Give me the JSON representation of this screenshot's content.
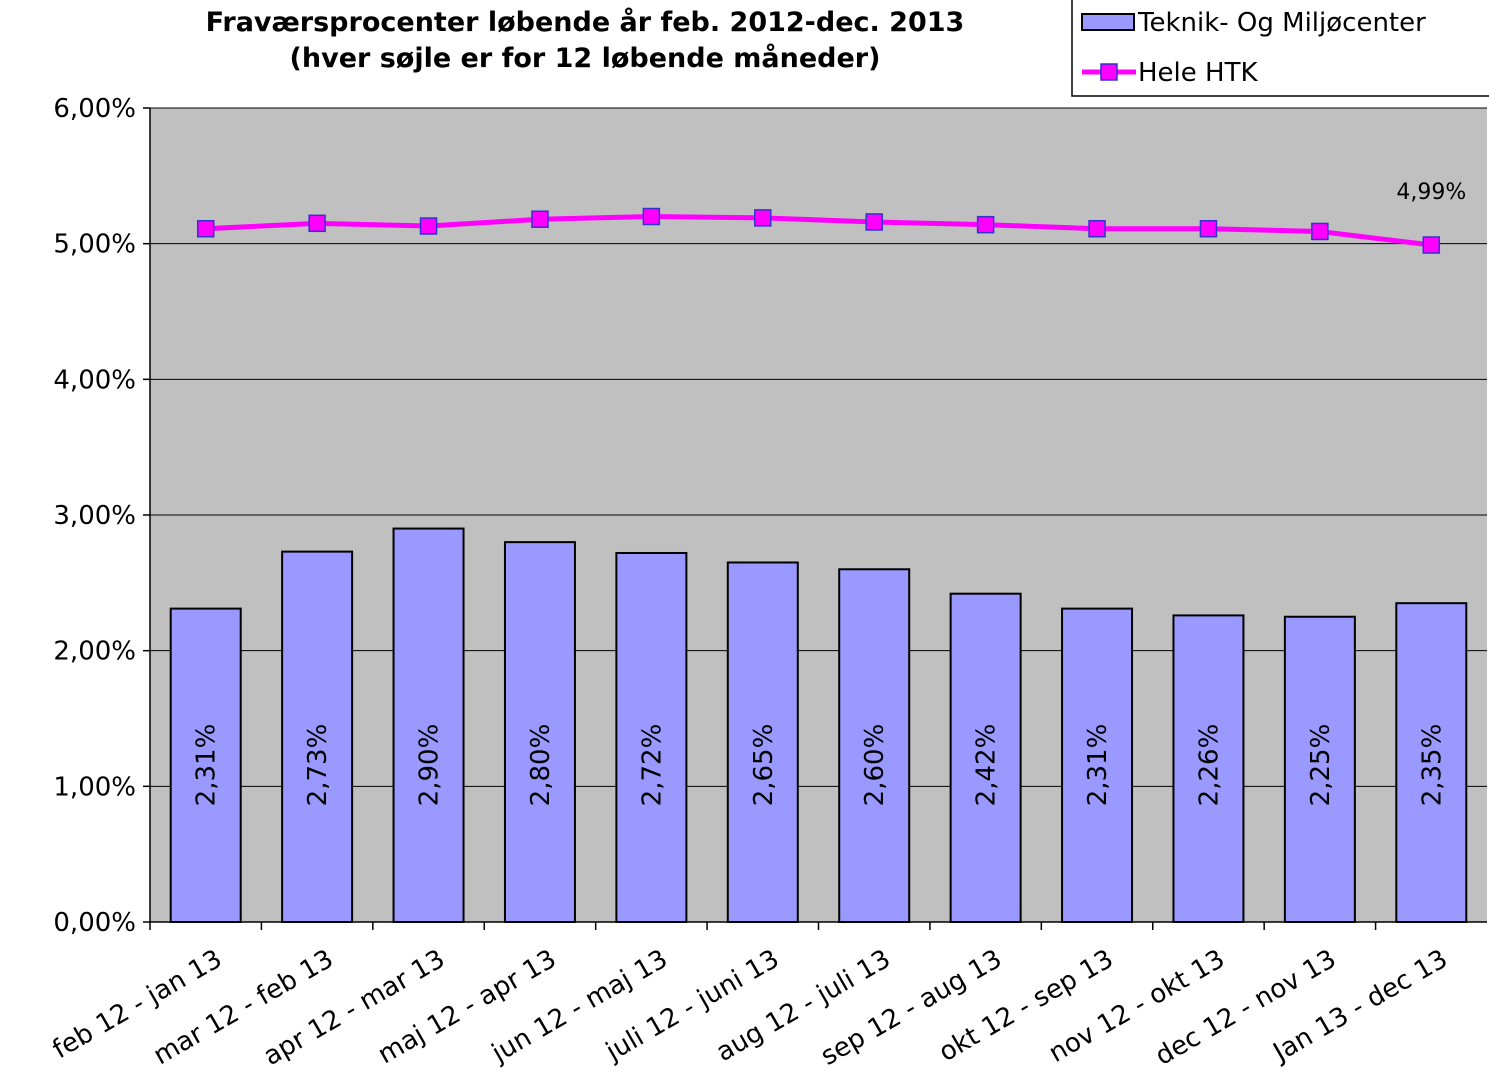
{
  "chart_data": {
    "type": "bar",
    "title": "Fraværsprocenter løbende år feb. 2012-dec. 2013",
    "subtitle": "(hver søjle er for 12 løbende måneder)",
    "categories": [
      "feb 12 - jan 13",
      "mar 12 - feb 13",
      "apr 12 - mar 13",
      "maj 12 - apr 13",
      "jun 12 - maj 13",
      "juli 12 - juni 13",
      "aug 12 - juli 13",
      "sep 12 - aug 13",
      "okt 12 - sep 13",
      "nov 12 - okt 13",
      "dec 12 - nov 13",
      "Jan 13 - dec 13"
    ],
    "series": [
      {
        "name": "Teknik- Og Miljøcenter",
        "type": "bar",
        "color": "#9999ff",
        "values": [
          2.31,
          2.73,
          2.9,
          2.8,
          2.72,
          2.65,
          2.6,
          2.42,
          2.31,
          2.26,
          2.25,
          2.35
        ],
        "value_labels": [
          "2,31%",
          "2,73%",
          "2,90%",
          "2,80%",
          "2,72%",
          "2,65%",
          "2,60%",
          "2,42%",
          "2,31%",
          "2,26%",
          "2,25%",
          "2,35%"
        ]
      },
      {
        "name": "Hele HTK",
        "type": "line",
        "color": "#ff00ff",
        "values": [
          5.11,
          5.15,
          5.13,
          5.18,
          5.2,
          5.19,
          5.16,
          5.14,
          5.11,
          5.11,
          5.09,
          4.99
        ],
        "value_labels": [
          null,
          null,
          null,
          null,
          null,
          null,
          null,
          null,
          null,
          null,
          null,
          "4,99%"
        ]
      }
    ],
    "ylim": [
      0,
      6
    ],
    "yticks": [
      {
        "value": 0,
        "label": "0,00%"
      },
      {
        "value": 1,
        "label": "1,00%"
      },
      {
        "value": 2,
        "label": "2,00%"
      },
      {
        "value": 3,
        "label": "3,00%"
      },
      {
        "value": 4,
        "label": "4,00%"
      },
      {
        "value": 5,
        "label": "5,00%"
      },
      {
        "value": 6,
        "label": "6,00%"
      }
    ],
    "grid": true,
    "legend": "top-right",
    "plot_background": "#c0c0c0"
  }
}
